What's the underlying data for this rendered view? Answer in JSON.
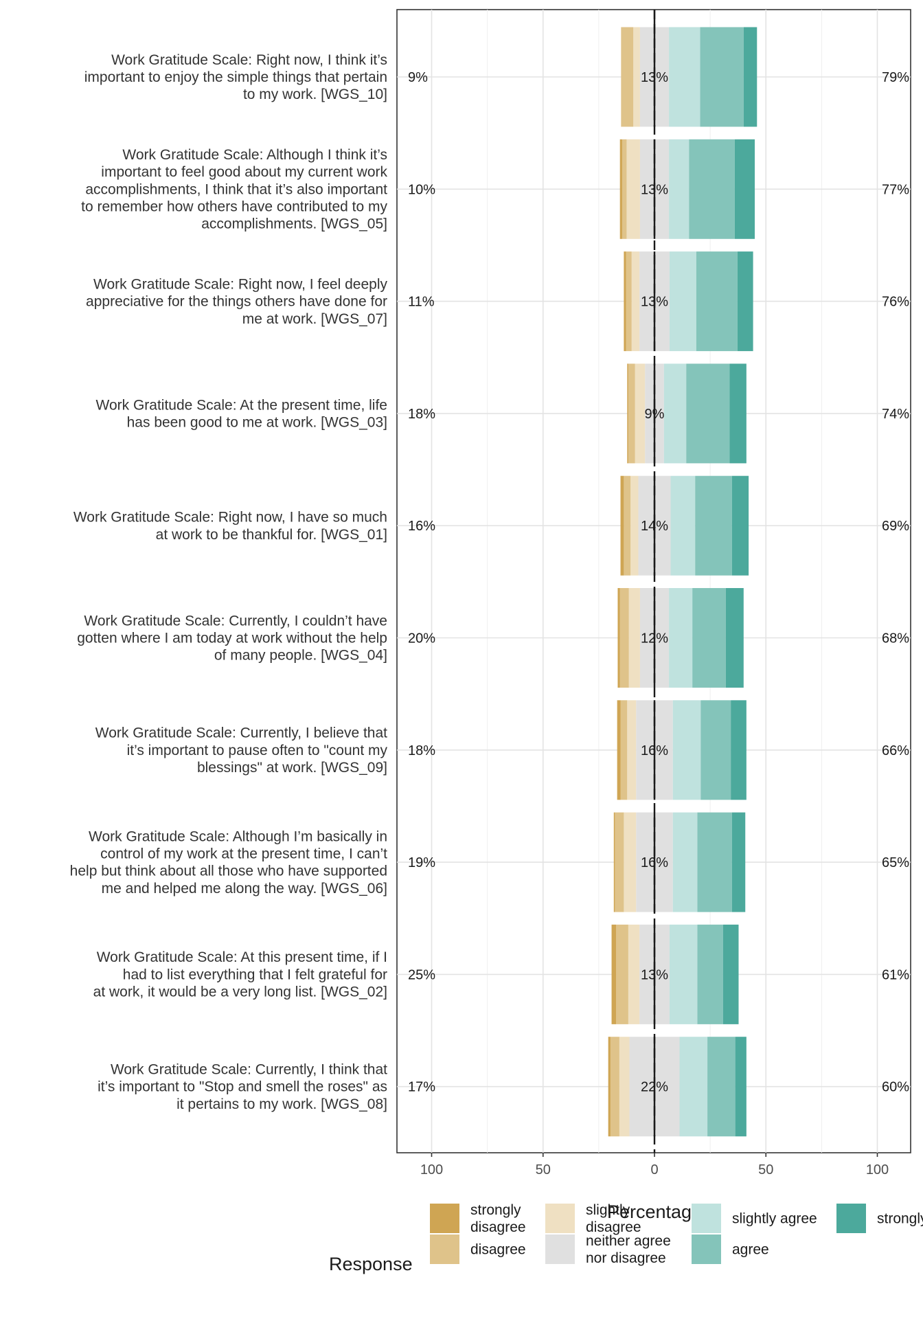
{
  "chart_data": {
    "type": "bar",
    "subtype": "diverging-stacked-likert",
    "xlabel": "Percentage",
    "xlim": [
      -100,
      100
    ],
    "xticks": [
      -100,
      -50,
      0,
      50,
      100
    ],
    "xtick_labels": [
      "100",
      "50",
      "0",
      "50",
      "100"
    ],
    "grid": true,
    "legend_position": "bottom",
    "legend_title": "Response",
    "categories": [
      {
        "name": "strongly disagree",
        "lines": [
          "strongly",
          "disagree"
        ],
        "color": "#CFA553"
      },
      {
        "name": "disagree",
        "lines": [
          "disagree"
        ],
        "color": "#DFC38A"
      },
      {
        "name": "slightly disagree",
        "lines": [
          "slightly",
          "disagree"
        ],
        "color": "#EFE0C2"
      },
      {
        "name": "neither agree nor disagree",
        "lines": [
          "neither agree",
          "nor disagree"
        ],
        "color": "#E0E0E0"
      },
      {
        "name": "slightly agree",
        "lines": [
          "slightly agree"
        ],
        "color": "#BFE2DE"
      },
      {
        "name": "agree",
        "lines": [
          "agree"
        ],
        "color": "#84C4BA"
      },
      {
        "name": "strongly agree",
        "lines": [
          "strongly agree"
        ],
        "color": "#4CA99C"
      }
    ],
    "items": [
      {
        "label_lines": [
          "Work Gratitude Scale: Right now, I think it’s",
          "important to enjoy the simple things that pertain",
          "to my work. [WGS_10]"
        ],
        "left_pct": "9%",
        "center_pct": "13%",
        "right_pct": "79%",
        "values": [
          0,
          5.5,
          3,
          13,
          14,
          19.5,
          6
        ]
      },
      {
        "label_lines": [
          "Work Gratitude Scale: Although I think it’s",
          "important to feel good about my current work",
          "accomplishments, I think that it’s also important",
          "to remember how others have contributed to my",
          "accomplishments. [WGS_05]"
        ],
        "left_pct": "10%",
        "center_pct": "13%",
        "right_pct": "77%",
        "values": [
          1,
          2,
          6,
          13,
          9,
          20.5,
          9
        ]
      },
      {
        "label_lines": [
          "Work Gratitude Scale: Right now, I feel deeply",
          "appreciative for the things others have done for",
          "me at work. [WGS_07]"
        ],
        "left_pct": "11%",
        "center_pct": "13%",
        "right_pct": "76%",
        "values": [
          1,
          2.5,
          3.5,
          13.5,
          12,
          18.5,
          7
        ]
      },
      {
        "label_lines": [
          "Work Gratitude Scale: At the present time, life",
          "has been good to me at work. [WGS_03]"
        ],
        "left_pct": "18%",
        "center_pct": "9%",
        "right_pct": "74%",
        "values": [
          0.5,
          3,
          4.5,
          8.5,
          10,
          19.5,
          7.5
        ]
      },
      {
        "label_lines": [
          "Work Gratitude Scale: Right now, I have so much",
          "at work to be thankful for. [WGS_01]"
        ],
        "left_pct": "16%",
        "center_pct": "14%",
        "right_pct": "69%",
        "values": [
          1.5,
          3,
          3.5,
          14.5,
          11,
          16.5,
          7.5
        ]
      },
      {
        "label_lines": [
          "Work Gratitude Scale: Currently, I couldn’t have",
          "gotten where I am today at work without the help",
          "of many people. [WGS_04]"
        ],
        "left_pct": "20%",
        "center_pct": "12%",
        "right_pct": "68%",
        "values": [
          1,
          4,
          5,
          13,
          10.5,
          15,
          8
        ]
      },
      {
        "label_lines": [
          "Work Gratitude Scale: Currently, I believe that",
          "it’s important to pause often to \"count my",
          "blessings\" at work. [WGS_09]"
        ],
        "left_pct": "18%",
        "center_pct": "16%",
        "right_pct": "66%",
        "values": [
          1.5,
          3,
          4,
          16.5,
          12.5,
          13.5,
          7
        ]
      },
      {
        "label_lines": [
          "Work Gratitude Scale: Although I’m basically in",
          "control of my work at the present time, I can’t",
          "help but think about all those who have supported",
          "me and helped me along the way. [WGS_06]"
        ],
        "left_pct": "19%",
        "center_pct": "16%",
        "right_pct": "65%",
        "values": [
          0.5,
          4,
          5.5,
          16.5,
          11,
          15.5,
          6
        ]
      },
      {
        "label_lines": [
          "Work Gratitude Scale: At this present time, if I",
          "had to list everything that I felt grateful for",
          "at work, it would be a very long list. [WGS_02]"
        ],
        "left_pct": "25%",
        "center_pct": "13%",
        "right_pct": "61%",
        "values": [
          2,
          5.5,
          5,
          13.5,
          12.5,
          11.5,
          7
        ]
      },
      {
        "label_lines": [
          "Work Gratitude Scale: Currently, I think that",
          "it’s important to \"Stop and smell the roses\" as",
          "it pertains to my work. [WGS_08]"
        ],
        "left_pct": "17%",
        "center_pct": "22%",
        "right_pct": "60%",
        "values": [
          1,
          4,
          4.5,
          22.5,
          12.5,
          12.5,
          5
        ]
      }
    ]
  }
}
